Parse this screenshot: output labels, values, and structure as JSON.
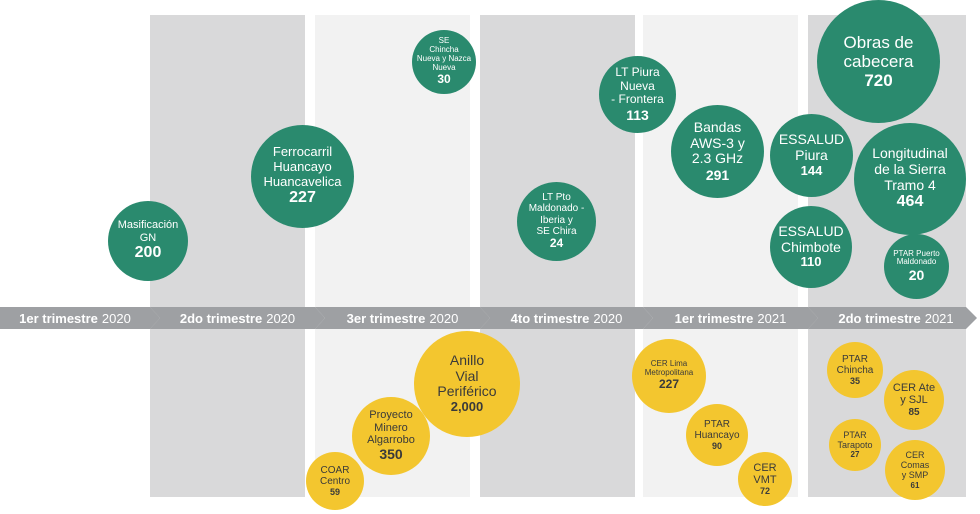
{
  "colors": {
    "green": "#2a8a6e",
    "yellow": "#f3c62f",
    "timeline_arrow": "#9ea0a3",
    "band_dark": "#d9d9da",
    "band_light": "#f2f2f2"
  },
  "timeline": [
    {
      "quarter": "1er trimestre",
      "year": "2020"
    },
    {
      "quarter": "2do trimestre",
      "year": "2020"
    },
    {
      "quarter": "3er trimestre",
      "year": "2020"
    },
    {
      "quarter": "4to trimestre",
      "year": "2020"
    },
    {
      "quarter": "1er trimestre",
      "year": "2021"
    },
    {
      "quarter": "2do trimestre",
      "year": "2021"
    }
  ],
  "projects_top": [
    {
      "label": "Masificación\nGN",
      "value": "200"
    },
    {
      "label": "Ferrocarril\nHuancayo\nHuancavelica",
      "value": "227"
    },
    {
      "label": "SE\nChincha\nNueva y Nazca\nNueva",
      "value": "30"
    },
    {
      "label": "LT Pto\nMaldonado -\nIberia y\nSE Chira",
      "value": "24"
    },
    {
      "label": "LT Piura\nNueva\n- Frontera",
      "value": "113"
    },
    {
      "label": "Bandas\nAWS-3 y\n2.3 GHz",
      "value": "291"
    },
    {
      "label": "Obras de\ncabecera",
      "value": "720"
    },
    {
      "label": "ESSALUD\nPiura",
      "value": "144"
    },
    {
      "label": "Longitudinal\nde la Sierra\nTramo 4",
      "value": "464"
    },
    {
      "label": "ESSALUD\nChimbote",
      "value": "110"
    },
    {
      "label": "PTAR Puerto\nMaldonado",
      "value": "20"
    }
  ],
  "projects_bottom": [
    {
      "label": "Anillo\nVial\nPeriférico",
      "value": "2,000"
    },
    {
      "label": "Proyecto\nMinero\nAlgarrobo",
      "value": "350"
    },
    {
      "label": "COAR\nCentro",
      "value": "59"
    },
    {
      "label": "CER Lima\nMetropolitana",
      "value": "227"
    },
    {
      "label": "PTAR\nHuancayo",
      "value": "90"
    },
    {
      "label": "CER\nVMT",
      "value": "72"
    },
    {
      "label": "PTAR\nChincha",
      "value": "35"
    },
    {
      "label": "CER Ate\ny SJL",
      "value": "85"
    },
    {
      "label": "PTAR\nTarapoto",
      "value": "27"
    },
    {
      "label": "CER\nComas\ny SMP",
      "value": "61"
    }
  ]
}
